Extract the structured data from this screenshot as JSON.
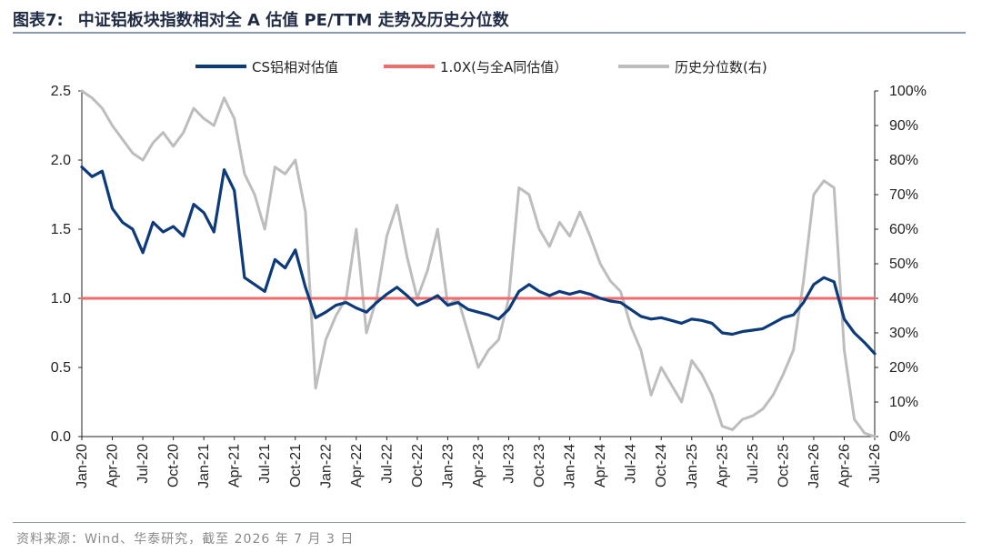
{
  "header": {
    "figure_label": "图表7:",
    "title": "中证铝板块指数相对全 A 估值 PE/TTM 走势及历史分位数"
  },
  "footer": {
    "source": "资料来源：Wind、华泰研究，截至 2026 年 7 月 3 日"
  },
  "colors": {
    "relative_line": "#0d3a7a",
    "reference_line": "#f26b6b",
    "percentile_line": "#bdbdbd"
  },
  "chart_data": {
    "type": "line",
    "title": "中证铝板块指数相对全 A 估值 PE/TTM 走势及历史分位数",
    "legend_position": "top-center",
    "grid": false,
    "x_ticks": [
      "Jan-20",
      "Apr-20",
      "Jul-20",
      "Oct-20",
      "Jan-21",
      "Apr-21",
      "Jul-21",
      "Oct-21",
      "Jan-22",
      "Apr-22",
      "Jul-22",
      "Oct-22",
      "Jan-23",
      "Apr-23",
      "Jul-23",
      "Oct-23",
      "Jan-24",
      "Apr-24",
      "Jul-24",
      "Oct-24",
      "Jan-25",
      "Apr-25",
      "Jul-25",
      "Oct-25",
      "Jan-26",
      "Apr-26",
      "Jul-26"
    ],
    "y_left": {
      "min": 0,
      "max": 2.5,
      "ticks": [
        "0.0",
        "0.5",
        "1.0",
        "1.5",
        "2.0",
        "2.5"
      ]
    },
    "y_right": {
      "min": 0,
      "max": 100,
      "unit": "%",
      "ticks": [
        "0%",
        "10%",
        "20%",
        "30%",
        "40%",
        "50%",
        "60%",
        "70%",
        "80%",
        "90%",
        "100%"
      ]
    },
    "series": [
      {
        "name": "CS铝相对估值",
        "axis": "left",
        "points": [
          [
            "2020-01",
            1.95
          ],
          [
            "2020-02",
            1.88
          ],
          [
            "2020-03",
            1.92
          ],
          [
            "2020-04",
            1.65
          ],
          [
            "2020-05",
            1.55
          ],
          [
            "2020-06",
            1.5
          ],
          [
            "2020-07",
            1.33
          ],
          [
            "2020-08",
            1.55
          ],
          [
            "2020-09",
            1.48
          ],
          [
            "2020-10",
            1.52
          ],
          [
            "2020-11",
            1.45
          ],
          [
            "2020-12",
            1.68
          ],
          [
            "2021-01",
            1.62
          ],
          [
            "2021-02",
            1.48
          ],
          [
            "2021-03",
            1.93
          ],
          [
            "2021-04",
            1.78
          ],
          [
            "2021-05",
            1.15
          ],
          [
            "2021-06",
            1.1
          ],
          [
            "2021-07",
            1.05
          ],
          [
            "2021-08",
            1.28
          ],
          [
            "2021-09",
            1.22
          ],
          [
            "2021-10",
            1.35
          ],
          [
            "2021-11",
            1.08
          ],
          [
            "2021-12",
            0.86
          ],
          [
            "2022-01",
            0.9
          ],
          [
            "2022-02",
            0.95
          ],
          [
            "2022-03",
            0.97
          ],
          [
            "2022-04",
            0.93
          ],
          [
            "2022-05",
            0.9
          ],
          [
            "2022-06",
            0.97
          ],
          [
            "2022-07",
            1.03
          ],
          [
            "2022-08",
            1.08
          ],
          [
            "2022-09",
            1.02
          ],
          [
            "2022-10",
            0.95
          ],
          [
            "2022-11",
            0.98
          ],
          [
            "2022-12",
            1.02
          ],
          [
            "2023-01",
            0.95
          ],
          [
            "2023-02",
            0.97
          ],
          [
            "2023-03",
            0.92
          ],
          [
            "2023-04",
            0.9
          ],
          [
            "2023-05",
            0.88
          ],
          [
            "2023-06",
            0.85
          ],
          [
            "2023-07",
            0.92
          ],
          [
            "2023-08",
            1.05
          ],
          [
            "2023-09",
            1.1
          ],
          [
            "2023-10",
            1.05
          ],
          [
            "2023-11",
            1.02
          ],
          [
            "2023-12",
            1.05
          ],
          [
            "2024-01",
            1.03
          ],
          [
            "2024-02",
            1.05
          ],
          [
            "2024-03",
            1.03
          ],
          [
            "2024-04",
            1.0
          ],
          [
            "2024-05",
            0.98
          ],
          [
            "2024-06",
            0.97
          ],
          [
            "2024-07",
            0.92
          ],
          [
            "2024-08",
            0.87
          ],
          [
            "2024-09",
            0.85
          ],
          [
            "2024-10",
            0.86
          ],
          [
            "2024-11",
            0.84
          ],
          [
            "2024-12",
            0.82
          ],
          [
            "2025-01",
            0.85
          ],
          [
            "2025-02",
            0.84
          ],
          [
            "2025-03",
            0.82
          ],
          [
            "2025-04",
            0.75
          ],
          [
            "2025-05",
            0.74
          ],
          [
            "2025-06",
            0.76
          ],
          [
            "2025-07",
            0.77
          ],
          [
            "2025-08",
            0.78
          ],
          [
            "2025-09",
            0.82
          ],
          [
            "2025-10",
            0.86
          ],
          [
            "2025-11",
            0.88
          ],
          [
            "2025-12",
            0.97
          ],
          [
            "2026-01",
            1.1
          ],
          [
            "2026-02",
            1.15
          ],
          [
            "2026-03",
            1.12
          ],
          [
            "2026-04",
            0.85
          ],
          [
            "2026-05",
            0.75
          ],
          [
            "2026-06",
            0.68
          ],
          [
            "2026-07",
            0.6
          ]
        ]
      },
      {
        "name": "1.0X(与全A同估值）",
        "axis": "left",
        "points": [
          [
            "2020-01",
            1.0
          ],
          [
            "2026-07",
            1.0
          ]
        ]
      },
      {
        "name": "历史分位数(右)",
        "axis": "right",
        "points": [
          [
            "2020-01",
            100
          ],
          [
            "2020-02",
            98
          ],
          [
            "2020-03",
            95
          ],
          [
            "2020-04",
            90
          ],
          [
            "2020-05",
            86
          ],
          [
            "2020-06",
            82
          ],
          [
            "2020-07",
            80
          ],
          [
            "2020-08",
            85
          ],
          [
            "2020-09",
            88
          ],
          [
            "2020-10",
            84
          ],
          [
            "2020-11",
            88
          ],
          [
            "2020-12",
            95
          ],
          [
            "2021-01",
            92
          ],
          [
            "2021-02",
            90
          ],
          [
            "2021-03",
            98
          ],
          [
            "2021-04",
            92
          ],
          [
            "2021-05",
            76
          ],
          [
            "2021-06",
            70
          ],
          [
            "2021-07",
            60
          ],
          [
            "2021-08",
            78
          ],
          [
            "2021-09",
            76
          ],
          [
            "2021-10",
            80
          ],
          [
            "2021-11",
            65
          ],
          [
            "2021-12",
            14
          ],
          [
            "2022-01",
            28
          ],
          [
            "2022-02",
            35
          ],
          [
            "2022-03",
            40
          ],
          [
            "2022-04",
            60
          ],
          [
            "2022-05",
            30
          ],
          [
            "2022-06",
            40
          ],
          [
            "2022-07",
            58
          ],
          [
            "2022-08",
            67
          ],
          [
            "2022-09",
            52
          ],
          [
            "2022-10",
            40
          ],
          [
            "2022-11",
            48
          ],
          [
            "2022-12",
            60
          ],
          [
            "2023-01",
            38
          ],
          [
            "2023-02",
            40
          ],
          [
            "2023-03",
            30
          ],
          [
            "2023-04",
            20
          ],
          [
            "2023-05",
            25
          ],
          [
            "2023-06",
            28
          ],
          [
            "2023-07",
            40
          ],
          [
            "2023-08",
            72
          ],
          [
            "2023-09",
            70
          ],
          [
            "2023-10",
            60
          ],
          [
            "2023-11",
            55
          ],
          [
            "2023-12",
            62
          ],
          [
            "2024-01",
            58
          ],
          [
            "2024-02",
            65
          ],
          [
            "2024-03",
            58
          ],
          [
            "2024-04",
            50
          ],
          [
            "2024-05",
            45
          ],
          [
            "2024-06",
            42
          ],
          [
            "2024-07",
            32
          ],
          [
            "2024-08",
            25
          ],
          [
            "2024-09",
            12
          ],
          [
            "2024-10",
            20
          ],
          [
            "2024-11",
            15
          ],
          [
            "2024-12",
            10
          ],
          [
            "2025-01",
            22
          ],
          [
            "2025-02",
            18
          ],
          [
            "2025-03",
            12
          ],
          [
            "2025-04",
            3
          ],
          [
            "2025-05",
            2
          ],
          [
            "2025-06",
            5
          ],
          [
            "2025-07",
            6
          ],
          [
            "2025-08",
            8
          ],
          [
            "2025-09",
            12
          ],
          [
            "2025-10",
            18
          ],
          [
            "2025-11",
            25
          ],
          [
            "2025-12",
            45
          ],
          [
            "2026-01",
            70
          ],
          [
            "2026-02",
            74
          ],
          [
            "2026-03",
            72
          ],
          [
            "2026-04",
            25
          ],
          [
            "2026-05",
            5
          ],
          [
            "2026-06",
            1
          ],
          [
            "2026-07",
            0
          ]
        ]
      }
    ]
  }
}
